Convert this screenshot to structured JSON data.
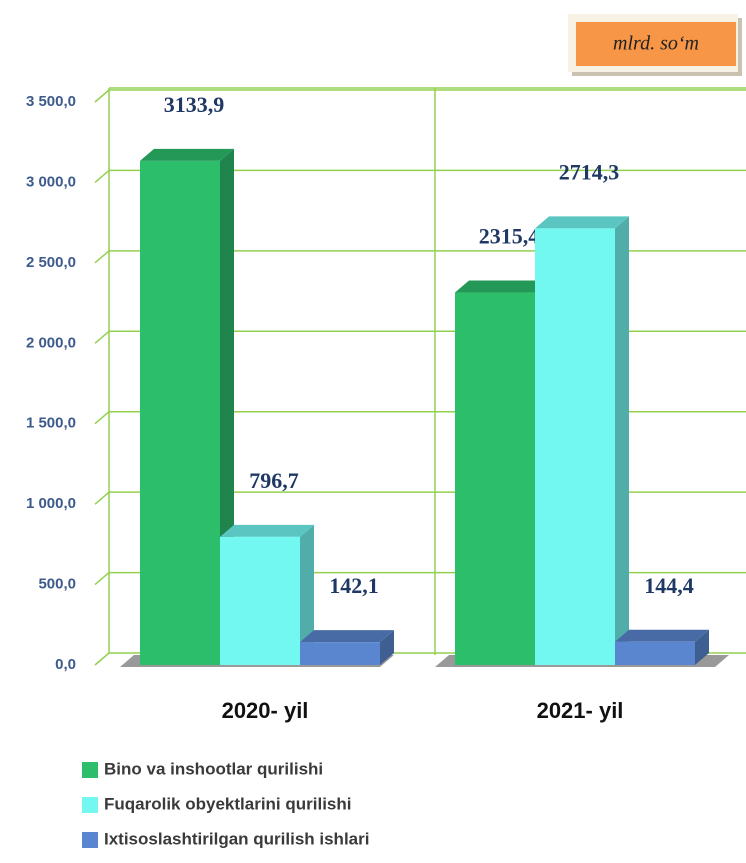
{
  "chart_data": {
    "type": "bar",
    "annotation": "mlrd. so‘m",
    "categories": [
      "2020-  yil",
      "2021- yil"
    ],
    "series": [
      {
        "name": "Bino va inshootlar qurilishi",
        "color": "#2dbe6c",
        "values": [
          3133.9,
          2315.4
        ],
        "value_labels": [
          "3133,9",
          "2315,4"
        ]
      },
      {
        "name": "Fuqarolik obyektlarini qurilishi",
        "color": "#72f7f1",
        "values": [
          796.7,
          2714.3
        ],
        "value_labels": [
          "796,7",
          "2714,3"
        ]
      },
      {
        "name": "Ixtisoslashtirilgan qurilish ishlari",
        "color": "#5a86cf",
        "values": [
          142.1,
          144.4
        ],
        "value_labels": [
          "142,1",
          "144,4"
        ]
      }
    ],
    "ylim": [
      0,
      3500
    ],
    "yticks": [
      {
        "value": 0,
        "label": "0,0"
      },
      {
        "value": 500,
        "label": "500,0"
      },
      {
        "value": 1000,
        "label": "1 000,0"
      },
      {
        "value": 1500,
        "label": "1 500,0"
      },
      {
        "value": 2000,
        "label": "2 000,0"
      },
      {
        "value": 2500,
        "label": "2 500,0"
      },
      {
        "value": 3000,
        "label": "3 000,0"
      },
      {
        "value": 3500,
        "label": "3 500,0"
      }
    ],
    "grid": true
  }
}
